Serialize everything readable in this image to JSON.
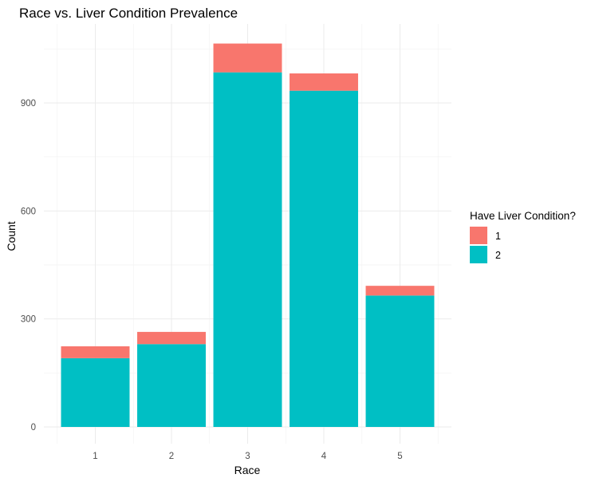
{
  "chart_data": {
    "type": "bar",
    "stacked": true,
    "title": "Race vs. Liver Condition Prevalence",
    "xlabel": "Race",
    "ylabel": "Count",
    "categories": [
      "1",
      "2",
      "3",
      "4",
      "5"
    ],
    "series": [
      {
        "name": "1",
        "color": "#f8766d",
        "values": [
          33,
          34,
          80,
          48,
          27
        ]
      },
      {
        "name": "2",
        "color": "#00bfc4",
        "values": [
          191,
          230,
          985,
          934,
          365
        ]
      }
    ],
    "stack_order": [
      "2",
      "1"
    ],
    "ylim": [
      0,
      1100
    ],
    "yticks": [
      "0",
      "300",
      "600",
      "900"
    ],
    "ytick_values": [
      0,
      300,
      600,
      900
    ],
    "grid": true,
    "legend": {
      "title": "Have Liver Condition?",
      "position": "right",
      "entries": [
        "1",
        "2"
      ]
    }
  }
}
